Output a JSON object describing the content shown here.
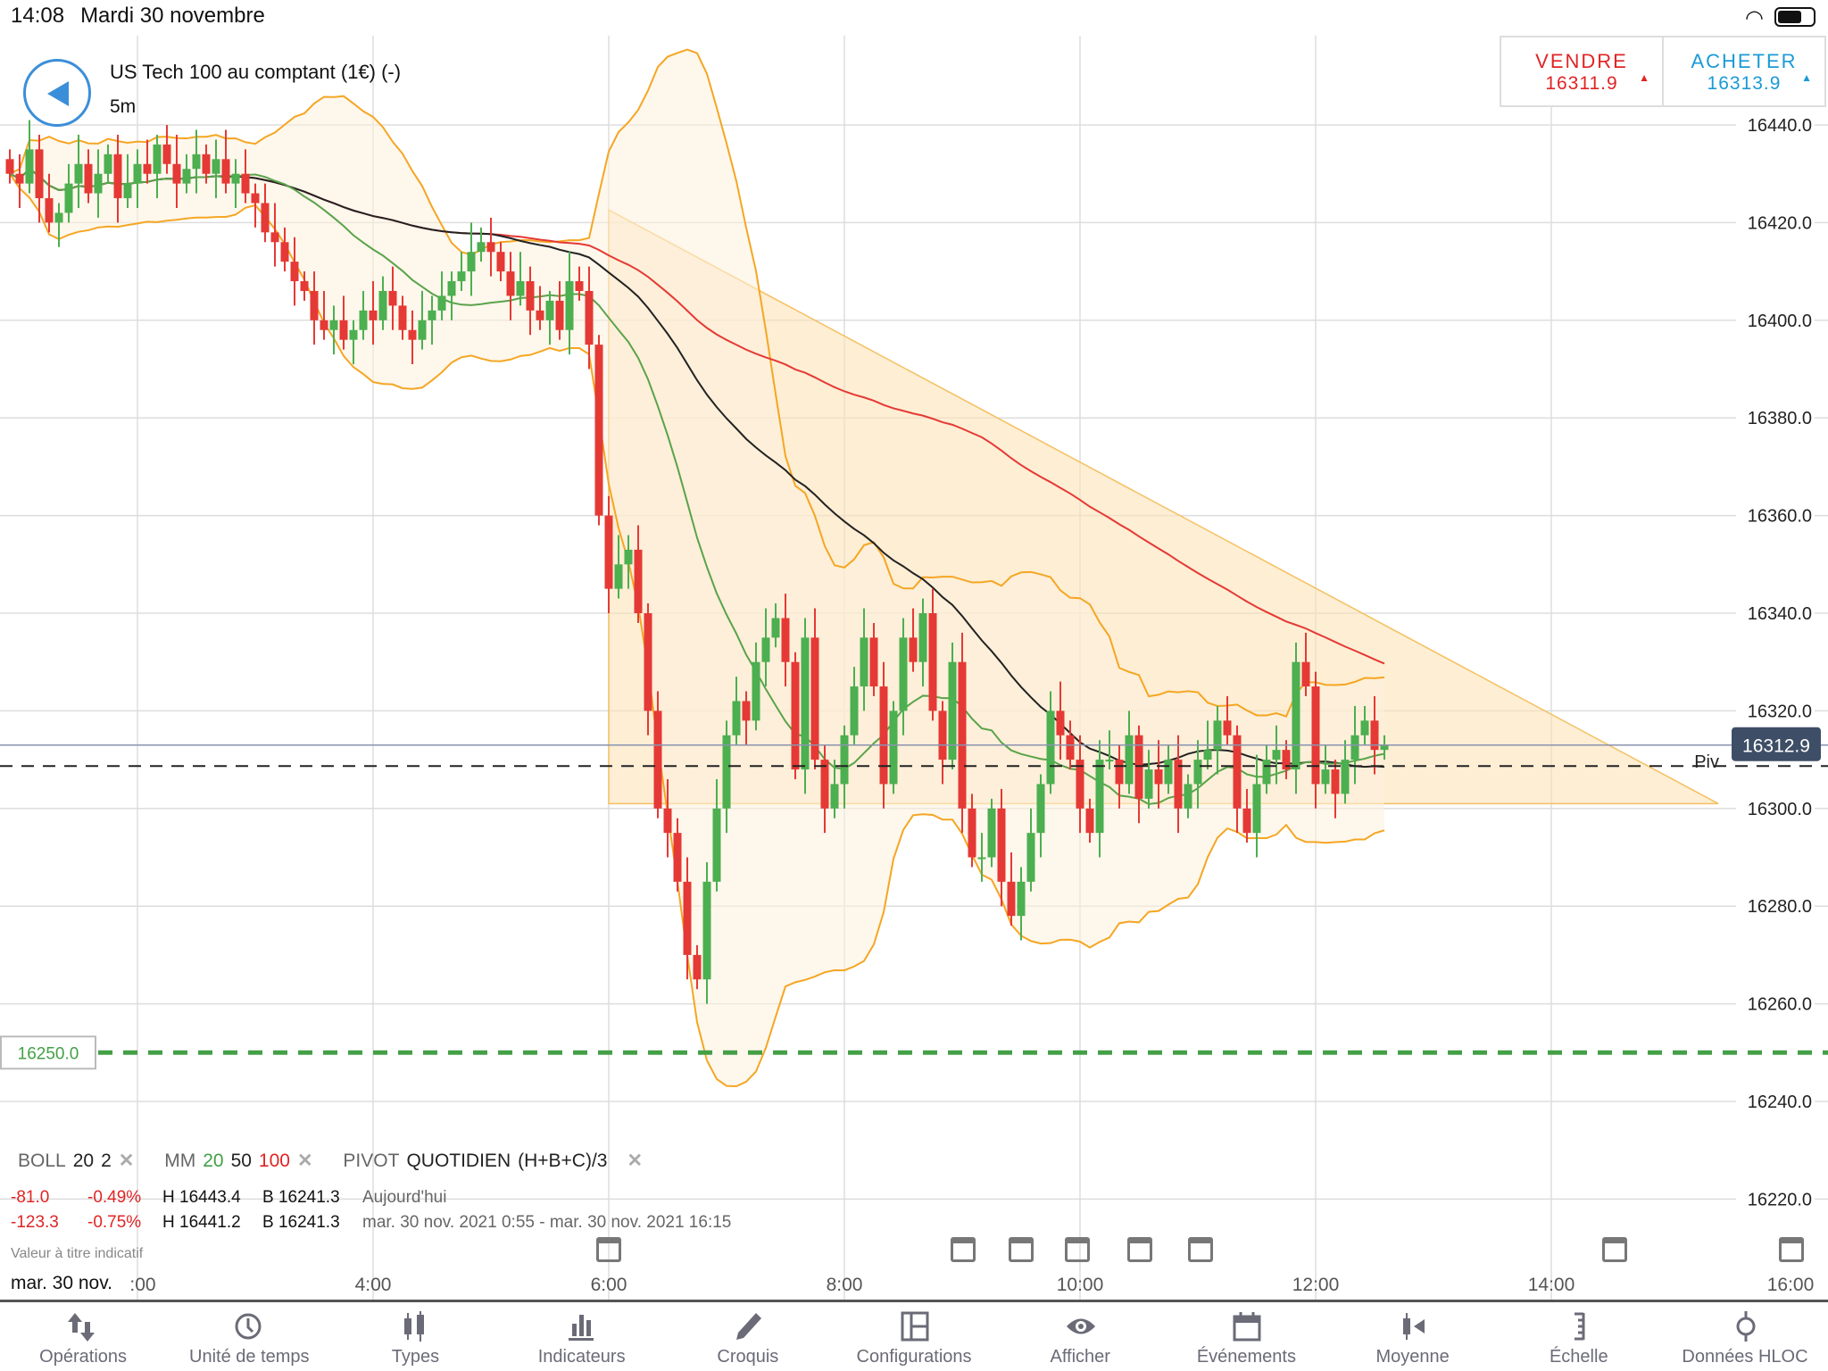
{
  "status": {
    "time": "14:08",
    "date": "Mardi 30 novembre"
  },
  "header": {
    "title": "US Tech 100 au comptant (1€) (-)",
    "timeframe": "5m"
  },
  "prices": {
    "sell_label": "VENDRE",
    "sell_value": "16311.9",
    "buy_label": "ACHETER",
    "buy_value": "16313.9",
    "sell_color": "#e02424",
    "buy_color": "#1a9ad6"
  },
  "legend": {
    "boll": "BOLL",
    "boll_p1": "20",
    "boll_p2": "2",
    "mm": "MM",
    "mm_p1": "20",
    "mm_p2": "50",
    "mm_p3": "100",
    "pivot": "PIVOT",
    "pivot_type": "QUOTIDIEN",
    "pivot_formula": "(H+B+C)/3"
  },
  "stats": [
    {
      "change": "-81.0",
      "pct": "-0.49%",
      "high": "H 16443.4",
      "low": "B 16241.3",
      "period": "Aujourd'hui"
    },
    {
      "change": "-123.3",
      "pct": "-0.75%",
      "high": "H 16441.2",
      "low": "B 16241.3",
      "period": "mar. 30 nov. 2021 0:55 - mar. 30 nov. 2021 16:15"
    }
  ],
  "note": "Valeur à titre indicatif",
  "date_label": "mar. 30 nov.",
  "toolbar": [
    {
      "label": "Opérations",
      "icon": "arrows-updown-icon"
    },
    {
      "label": "Unité de temps",
      "icon": "clock-icon"
    },
    {
      "label": "Types",
      "icon": "candles-icon"
    },
    {
      "label": "Indicateurs",
      "icon": "bars-icon"
    },
    {
      "label": "Croquis",
      "icon": "pencil-icon"
    },
    {
      "label": "Configurations",
      "icon": "layout-icon"
    },
    {
      "label": "Afficher",
      "icon": "eye-icon"
    },
    {
      "label": "Événements",
      "icon": "calendar-icon"
    },
    {
      "label": "Moyenne",
      "icon": "average-icon"
    },
    {
      "label": "Échelle",
      "icon": "scale-icon"
    },
    {
      "label": "Données HLOC",
      "icon": "hloc-icon"
    }
  ],
  "chart_data": {
    "type": "candlestick",
    "interval_minutes": 5,
    "start_time": "0:55",
    "closes": [
      16430,
      16428,
      16435,
      16425,
      16420,
      16422,
      16428,
      16432,
      16426,
      16430,
      16434,
      16425,
      16428,
      16432,
      16430,
      16436,
      16432,
      16428,
      16431,
      16434,
      16430,
      16433,
      16428,
      16430,
      16426,
      16424,
      16418,
      16416,
      16412,
      16408,
      16406,
      16400,
      16398,
      16400,
      16396,
      16398,
      16402,
      16400,
      16406,
      16403,
      16398,
      16396,
      16400,
      16402,
      16405,
      16408,
      16410,
      16414,
      16416,
      16414,
      16410,
      16405,
      16408,
      16402,
      16400,
      16404,
      16398,
      16408,
      16406,
      16395,
      16360,
      16345,
      16350,
      16353,
      16340,
      16320,
      16300,
      16295,
      16285,
      16270,
      16265,
      16285,
      16300,
      16315,
      16322,
      16318,
      16330,
      16335,
      16339,
      16330,
      16308,
      16335,
      16310,
      16300,
      16305,
      16315,
      16325,
      16335,
      16325,
      16305,
      16320,
      16335,
      16330,
      16340,
      16320,
      16310,
      16330,
      16300,
      16290,
      16290,
      16300,
      16285,
      16278,
      16285,
      16295,
      16305,
      16320,
      16315,
      16310,
      16300,
      16295,
      16310,
      16310,
      16305,
      16315,
      16302,
      16308,
      16305,
      16310,
      16300,
      16305,
      16310,
      16312,
      16318,
      16315,
      16300,
      16295,
      16305,
      16310,
      16312,
      16308,
      16330,
      16325,
      16305,
      16308,
      16303,
      16310,
      16315,
      16318,
      16312,
      16313
    ],
    "y_ticks": [
      "16440.0",
      "16420.0",
      "16400.0",
      "16380.0",
      "16360.0",
      "16340.0",
      "16320.0",
      "16300.0",
      "16280.0",
      "16260.0",
      "16240.0",
      "16220.0"
    ],
    "ylim": [
      16212,
      16450
    ],
    "x_ticks": [
      ":00",
      "4:00",
      "6:00",
      "8:00",
      "10:00",
      "12:00",
      "14:00",
      "16:00"
    ],
    "current_price": "16312.9",
    "pivot": 16308.7,
    "pivot_label": "Piv",
    "alert_level": "16250.0",
    "triangle_drawing": {
      "start": [
        "6:00",
        16422.6
      ],
      "apex": [
        "15:25",
        16301
      ],
      "base": 16301
    },
    "indicators": {
      "bollinger": [
        20,
        2
      ],
      "ma": [
        20,
        50,
        100
      ]
    },
    "colors": {
      "up": "#4caf50",
      "down": "#e53935",
      "ma20": "#5aa34a",
      "ma50": "#222222",
      "ma100": "#e53935",
      "boll": "#f5a623",
      "alert": "#43a047"
    }
  }
}
